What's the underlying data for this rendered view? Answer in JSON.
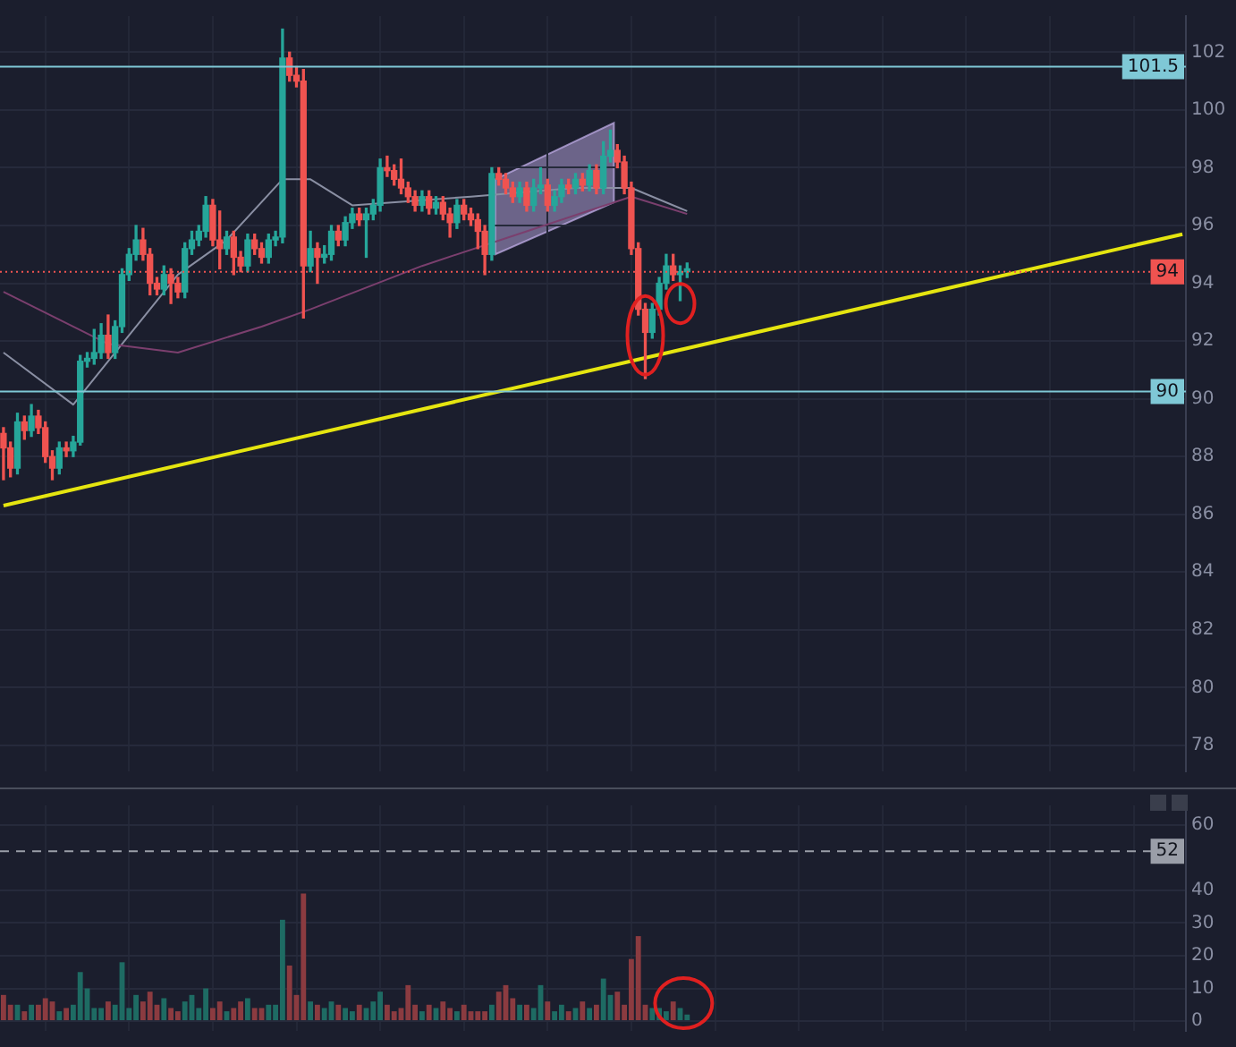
{
  "chart_data": [
    {
      "type": "candlestick",
      "tick_labels": "y",
      "grid": true,
      "legend": false,
      "categories": [
        null,
        null,
        null,
        null,
        null,
        null,
        null,
        null,
        null,
        null,
        null,
        null,
        null,
        null,
        null,
        null,
        null,
        null,
        null,
        null,
        null,
        null,
        null,
        null,
        null,
        null,
        null,
        null,
        null,
        null,
        null,
        null,
        null,
        null,
        null,
        null,
        null,
        null,
        null,
        null,
        null,
        null,
        null,
        null,
        null,
        null,
        null,
        null,
        null,
        null,
        null,
        null,
        null,
        null,
        null,
        null,
        null,
        null,
        null,
        null,
        null,
        null,
        null,
        null,
        null,
        null,
        null,
        null,
        null,
        null,
        null,
        null,
        null,
        null,
        null,
        null,
        null,
        null,
        null,
        null,
        null,
        null,
        null,
        null,
        null,
        null,
        null,
        null,
        null,
        null,
        null,
        null,
        null,
        null,
        null,
        null,
        null,
        null,
        null,
        null,
        null,
        null,
        null,
        null,
        null,
        null,
        null,
        null,
        null,
        null,
        null,
        null,
        null,
        null,
        null,
        null,
        null,
        null,
        null,
        null,
        null,
        null,
        null,
        null,
        null,
        null,
        null,
        null,
        null,
        null,
        null,
        null,
        null,
        null,
        null,
        null,
        null,
        null,
        null,
        null,
        null,
        null,
        null,
        null,
        null,
        null,
        null,
        null,
        null,
        null,
        null,
        null,
        null,
        null,
        null,
        null,
        null,
        null,
        null,
        null,
        null,
        null,
        null,
        null,
        null,
        null,
        null,
        null,
        null,
        null
      ],
      "ohlc": [
        [
          88.8,
          89.0,
          87.2,
          88.3
        ],
        [
          88.3,
          88.5,
          87.3,
          87.6
        ],
        [
          87.6,
          89.5,
          87.4,
          89.2
        ],
        [
          89.2,
          89.4,
          88.6,
          88.9
        ],
        [
          88.9,
          89.8,
          88.7,
          89.4
        ],
        [
          89.4,
          89.6,
          88.8,
          89.0
        ],
        [
          89.0,
          89.2,
          87.8,
          88.0
        ],
        [
          88.0,
          88.2,
          87.2,
          87.6
        ],
        [
          87.6,
          88.5,
          87.4,
          88.3
        ],
        [
          88.3,
          88.5,
          88.0,
          88.2
        ],
        [
          88.2,
          88.7,
          88.0,
          88.5
        ],
        [
          88.5,
          91.5,
          88.4,
          91.3
        ],
        [
          91.3,
          91.6,
          91.1,
          91.4
        ],
        [
          91.4,
          92.4,
          91.2,
          91.6
        ],
        [
          91.6,
          92.6,
          91.4,
          92.2
        ],
        [
          92.2,
          92.9,
          91.4,
          91.6
        ],
        [
          91.6,
          92.7,
          91.4,
          92.5
        ],
        [
          92.5,
          94.5,
          92.3,
          94.3
        ],
        [
          94.3,
          95.2,
          94.1,
          95.0
        ],
        [
          95.0,
          96.0,
          94.8,
          95.5
        ],
        [
          95.5,
          95.9,
          94.8,
          95.0
        ],
        [
          95.0,
          95.2,
          93.6,
          94.0
        ],
        [
          94.0,
          94.2,
          93.6,
          93.8
        ],
        [
          93.8,
          94.6,
          93.6,
          94.3
        ],
        [
          94.3,
          94.5,
          93.3,
          94.0
        ],
        [
          94.0,
          94.2,
          93.5,
          93.7
        ],
        [
          93.7,
          95.4,
          93.5,
          95.2
        ],
        [
          95.2,
          95.8,
          95.0,
          95.5
        ],
        [
          95.5,
          96.0,
          95.3,
          95.8
        ],
        [
          95.8,
          97.0,
          95.6,
          96.7
        ],
        [
          96.7,
          96.9,
          95.3,
          95.5
        ],
        [
          95.5,
          96.5,
          94.5,
          95.2
        ],
        [
          95.2,
          95.8,
          95.0,
          95.6
        ],
        [
          95.6,
          95.8,
          94.3,
          94.9
        ],
        [
          94.9,
          95.1,
          94.4,
          94.6
        ],
        [
          94.6,
          95.7,
          94.4,
          95.5
        ],
        [
          95.5,
          95.7,
          95.0,
          95.2
        ],
        [
          95.2,
          95.4,
          94.7,
          94.9
        ],
        [
          94.9,
          95.7,
          94.7,
          95.5
        ],
        [
          95.5,
          95.8,
          95.3,
          95.6
        ],
        [
          95.6,
          102.8,
          95.4,
          101.8
        ],
        [
          101.8,
          102.0,
          101.0,
          101.2
        ],
        [
          101.2,
          101.5,
          100.8,
          101.0
        ],
        [
          101.0,
          101.4,
          92.8,
          94.6
        ],
        [
          94.6,
          95.8,
          94.4,
          95.2
        ],
        [
          95.2,
          95.4,
          94.0,
          94.9
        ],
        [
          94.9,
          95.3,
          94.7,
          95.0
        ],
        [
          95.0,
          96.0,
          94.8,
          95.8
        ],
        [
          95.8,
          96.0,
          95.3,
          95.5
        ],
        [
          95.5,
          96.3,
          95.3,
          96.1
        ],
        [
          96.1,
          96.6,
          95.9,
          96.4
        ],
        [
          96.4,
          96.6,
          96.0,
          96.2
        ],
        [
          96.2,
          96.6,
          94.9,
          96.4
        ],
        [
          96.4,
          96.9,
          96.2,
          96.7
        ],
        [
          96.7,
          98.3,
          96.5,
          98.0
        ],
        [
          98.0,
          98.4,
          97.7,
          97.9
        ],
        [
          97.9,
          98.1,
          97.4,
          97.6
        ],
        [
          97.6,
          98.3,
          97.1,
          97.3
        ],
        [
          97.3,
          97.5,
          96.8,
          97.0
        ],
        [
          97.0,
          97.2,
          96.5,
          96.7
        ],
        [
          96.7,
          97.2,
          96.5,
          97.0
        ],
        [
          97.0,
          97.2,
          96.4,
          96.6
        ],
        [
          96.6,
          97.0,
          96.4,
          96.8
        ],
        [
          96.8,
          97.0,
          96.2,
          96.4
        ],
        [
          96.4,
          96.6,
          95.6,
          96.1
        ],
        [
          96.1,
          96.9,
          95.9,
          96.7
        ],
        [
          96.7,
          96.9,
          96.2,
          96.4
        ],
        [
          96.4,
          96.6,
          96.0,
          96.2
        ],
        [
          96.2,
          96.4,
          95.2,
          95.8
        ],
        [
          95.8,
          96.0,
          94.3,
          95.0
        ],
        [
          95.0,
          98.0,
          94.8,
          97.8
        ],
        [
          97.8,
          98.0,
          97.4,
          97.6
        ],
        [
          97.6,
          97.8,
          97.1,
          97.3
        ],
        [
          97.3,
          97.5,
          96.8,
          97.0
        ],
        [
          97.0,
          97.5,
          96.8,
          97.3
        ],
        [
          97.3,
          97.5,
          96.5,
          96.7
        ],
        [
          96.7,
          97.6,
          96.5,
          97.3
        ],
        [
          97.3,
          98.0,
          97.1,
          97.4
        ],
        [
          97.4,
          97.6,
          96.5,
          96.7
        ],
        [
          96.7,
          97.2,
          96.5,
          97.0
        ],
        [
          97.0,
          97.6,
          96.8,
          97.4
        ],
        [
          97.4,
          97.6,
          97.1,
          97.3
        ],
        [
          97.3,
          97.8,
          97.1,
          97.6
        ],
        [
          97.6,
          97.8,
          97.2,
          97.4
        ],
        [
          97.4,
          98.1,
          97.2,
          97.9
        ],
        [
          97.9,
          98.1,
          97.1,
          97.3
        ],
        [
          97.3,
          98.9,
          97.1,
          98.4
        ],
        [
          98.4,
          99.3,
          98.2,
          98.6
        ],
        [
          98.6,
          98.8,
          98.0,
          98.2
        ],
        [
          98.2,
          98.4,
          97.1,
          97.3
        ],
        [
          97.3,
          97.5,
          95.0,
          95.2
        ],
        [
          95.2,
          95.4,
          92.9,
          93.1
        ],
        [
          93.1,
          93.3,
          90.7,
          92.3
        ],
        [
          92.3,
          93.3,
          92.1,
          93.1
        ],
        [
          93.1,
          94.2,
          92.9,
          94.0
        ],
        [
          94.0,
          95.0,
          93.8,
          94.6
        ],
        [
          94.6,
          95.0,
          94.1,
          94.3
        ],
        [
          94.3,
          94.6,
          93.4,
          94.4
        ],
        [
          94.4,
          94.7,
          94.2,
          94.5
        ],
        null,
        null,
        null,
        null,
        null,
        null,
        null,
        null,
        null,
        null,
        null,
        null,
        null,
        null,
        null,
        null,
        null,
        null,
        null,
        null,
        null,
        null,
        null,
        null,
        null,
        null,
        null,
        null,
        null,
        null,
        null,
        null,
        null,
        null,
        null,
        null,
        null,
        null,
        null,
        null,
        null,
        null,
        null,
        null,
        null,
        null,
        null,
        null,
        null,
        null,
        null,
        null,
        null,
        null,
        null,
        null,
        null,
        null,
        null,
        null,
        null,
        null,
        null,
        null,
        null,
        null,
        null,
        null,
        null,
        null,
        null
      ],
      "colors": [
        "#ef5350",
        "#ef5350",
        "#26a69a",
        "#ef5350",
        "#26a69a",
        "#ef5350",
        "#ef5350",
        "#ef5350",
        "#26a69a",
        "#ef5350",
        "#26a69a",
        "#26a69a",
        "#26a69a",
        "#26a69a",
        "#26a69a",
        "#ef5350",
        "#26a69a",
        "#26a69a",
        "#26a69a",
        "#26a69a",
        "#ef5350",
        "#ef5350",
        "#ef5350",
        "#26a69a",
        "#ef5350",
        "#ef5350",
        "#26a69a",
        "#26a69a",
        "#26a69a",
        "#26a69a",
        "#ef5350",
        "#ef5350",
        "#26a69a",
        "#ef5350",
        "#ef5350",
        "#26a69a",
        "#ef5350",
        "#ef5350",
        "#26a69a",
        "#26a69a",
        "#26a69a",
        "#ef5350",
        "#ef5350",
        "#ef5350",
        "#26a69a",
        "#ef5350",
        "#26a69a",
        "#26a69a",
        "#ef5350",
        "#26a69a",
        "#26a69a",
        "#ef5350",
        "#26a69a",
        "#26a69a",
        "#26a69a",
        "#ef5350",
        "#ef5350",
        "#ef5350",
        "#ef5350",
        "#ef5350",
        "#26a69a",
        "#ef5350",
        "#26a69a",
        "#ef5350",
        "#ef5350",
        "#26a69a",
        "#ef5350",
        "#ef5350",
        "#ef5350",
        "#ef5350",
        "#26a69a",
        "#ef5350",
        "#ef5350",
        "#ef5350",
        "#26a69a",
        "#ef5350",
        "#26a69a",
        "#26a69a",
        "#ef5350",
        "#26a69a",
        "#26a69a",
        "#ef5350",
        "#26a69a",
        "#ef5350",
        "#26a69a",
        "#ef5350",
        "#26a69a",
        "#26a69a",
        "#ef5350",
        "#ef5350",
        "#ef5350",
        "#ef5350",
        "#ef5350",
        "#26a69a",
        "#26a69a",
        "#26a69a",
        "#ef5350",
        "#26a69a",
        "#26a69a",
        null,
        null,
        null,
        null,
        null,
        null,
        null,
        null,
        null,
        null,
        null,
        null,
        null,
        null,
        null,
        null,
        null,
        null,
        null,
        null,
        null,
        null,
        null,
        null,
        null,
        null,
        null,
        null,
        null,
        null,
        null,
        null,
        null,
        null,
        null,
        null,
        null,
        null,
        null,
        null,
        null,
        null,
        null,
        null,
        null,
        null,
        null,
        null,
        null,
        null,
        null,
        null,
        null,
        null,
        null,
        null,
        null,
        null,
        null,
        null,
        null,
        null,
        null,
        null,
        null,
        null,
        null,
        null,
        null,
        null,
        null
      ],
      "series": [
        {
          "type": "line",
          "color": "#7b3f6e",
          "values": [
            93.7,
            null,
            null,
            null,
            null,
            null,
            null,
            null,
            null,
            null,
            null,
            null,
            null,
            null,
            null,
            91.9,
            null,
            null,
            null,
            null,
            null,
            null,
            null,
            null,
            null,
            91.6,
            null,
            null,
            null,
            null,
            null,
            null,
            null,
            null,
            null,
            null,
            null,
            92.5,
            null,
            null,
            null,
            null,
            null,
            null,
            93.1,
            null,
            null,
            null,
            null,
            null,
            null,
            null,
            null,
            null,
            null,
            null,
            null,
            null,
            null,
            null,
            94.6,
            null,
            null,
            null,
            null,
            null,
            null,
            null,
            null,
            null,
            null,
            null,
            null,
            null,
            null,
            95.8,
            null,
            null,
            null,
            null,
            null,
            null,
            null,
            null,
            null,
            null,
            null,
            null,
            null,
            null,
            97.0,
            null,
            null,
            null,
            null,
            null,
            null,
            null,
            96.4,
            null,
            null,
            null,
            null,
            null,
            null,
            null,
            null,
            null,
            null,
            null,
            null,
            null,
            null,
            null,
            null,
            null,
            null,
            null,
            null,
            null,
            null,
            null,
            null,
            null,
            null,
            null,
            null,
            null,
            null,
            null,
            null,
            null,
            null,
            null,
            null,
            null,
            null,
            null,
            null,
            null,
            null,
            null,
            null,
            null,
            null,
            null,
            null,
            null,
            null,
            null,
            null,
            null,
            null,
            null,
            null,
            null,
            null,
            null,
            null,
            null,
            null,
            null,
            null,
            null,
            null,
            null,
            null,
            null,
            null,
            null
          ]
        },
        {
          "type": "line",
          "color": "#8a8fa3",
          "values": [
            91.6,
            null,
            null,
            null,
            null,
            null,
            null,
            null,
            null,
            null,
            89.8,
            null,
            null,
            null,
            null,
            null,
            null,
            null,
            null,
            null,
            null,
            null,
            null,
            null,
            null,
            94.3,
            null,
            null,
            null,
            null,
            null,
            null,
            95.5,
            null,
            null,
            null,
            null,
            null,
            null,
            null,
            97.6,
            null,
            null,
            null,
            97.6,
            null,
            null,
            null,
            null,
            null,
            96.7,
            null,
            null,
            null,
            null,
            null,
            null,
            null,
            null,
            null,
            null,
            null,
            null,
            null,
            null,
            null,
            null,
            97.0,
            null,
            null,
            null,
            null,
            null,
            null,
            null,
            null,
            null,
            null,
            null,
            null,
            null,
            null,
            97.3,
            null,
            null,
            null,
            null,
            null,
            null,
            null,
            97.3,
            null,
            null,
            null,
            null,
            null,
            null,
            null,
            96.5,
            null,
            null,
            null,
            null,
            null,
            null,
            null,
            null,
            null,
            null,
            null,
            null,
            null,
            null,
            null,
            null,
            null,
            null,
            null,
            null,
            null,
            null,
            null,
            null,
            null,
            null,
            null,
            null,
            null,
            null,
            null,
            null,
            null,
            null,
            null,
            null,
            null,
            null,
            null,
            null,
            null,
            null,
            null,
            null,
            null,
            null,
            null,
            null,
            null,
            null,
            null,
            null,
            null,
            null,
            null,
            null,
            null,
            null,
            null,
            null,
            null,
            null,
            null,
            null,
            null,
            null,
            null,
            null,
            null,
            null,
            null
          ]
        },
        {
          "type": "line",
          "color": "#e5e510",
          "values": [
            86.3,
            null,
            null,
            null,
            null,
            null,
            null,
            null,
            null,
            null,
            null,
            null,
            null,
            null,
            null,
            null,
            null,
            null,
            null,
            null,
            null,
            null,
            null,
            null,
            null,
            null,
            null,
            null,
            null,
            null,
            null,
            null,
            null,
            null,
            null,
            null,
            null,
            null,
            null,
            null,
            null,
            null,
            null,
            null,
            null,
            null,
            null,
            null,
            null,
            null,
            null,
            null,
            null,
            null,
            null,
            null,
            null,
            null,
            null,
            null,
            null,
            null,
            null,
            null,
            null,
            null,
            null,
            null,
            null,
            null,
            null,
            null,
            null,
            null,
            null,
            null,
            null,
            null,
            null,
            null,
            null,
            null,
            null,
            null,
            null,
            null,
            null,
            null,
            null,
            null,
            null,
            null,
            null,
            null,
            null,
            null,
            null,
            null,
            null,
            null,
            null,
            null,
            null,
            null,
            null,
            null,
            null,
            null,
            null,
            null,
            null,
            null,
            null,
            null,
            null,
            null,
            null,
            null,
            null,
            null,
            null,
            null,
            null,
            null,
            null,
            null,
            null,
            null,
            null,
            null,
            null,
            null,
            null,
            null,
            null,
            null,
            null,
            null,
            null,
            null,
            null,
            null,
            null,
            null,
            null,
            null,
            null,
            null,
            null,
            null,
            null,
            null,
            null,
            null,
            null,
            null,
            null,
            null,
            null,
            null,
            null,
            null,
            null,
            null,
            null,
            null,
            null,
            null,
            null,
            95.7
          ]
        }
      ],
      "ylim": [
        77.1,
        103.25
      ],
      "yticks": [
        78,
        80,
        82,
        84,
        86,
        88,
        90,
        92,
        94,
        96,
        98,
        100,
        102
      ],
      "ref_lines": [
        {
          "axis": "y",
          "value": 101.5,
          "label": "101.5",
          "color": "#7fc8d6",
          "line_style": "solid"
        },
        {
          "axis": "y",
          "value": 90.25,
          "label": "90",
          "color": "#7fc8d6",
          "line_style": "solid"
        },
        {
          "axis": "y",
          "value": 94.4,
          "label": "94",
          "color": "#ef5350",
          "line_style": "dotted"
        }
      ]
    },
    {
      "type": "bar",
      "tick_labels": "y",
      "grid": true,
      "legend": false,
      "categories": [
        null,
        null,
        null,
        null,
        null,
        null,
        null,
        null,
        null,
        null,
        null,
        null,
        null,
        null,
        null,
        null,
        null,
        null,
        null,
        null,
        null,
        null,
        null,
        null,
        null,
        null,
        null,
        null,
        null,
        null,
        null,
        null,
        null,
        null,
        null,
        null,
        null,
        null,
        null,
        null,
        null,
        null,
        null,
        null,
        null,
        null,
        null,
        null,
        null,
        null,
        null,
        null,
        null,
        null,
        null,
        null,
        null,
        null,
        null,
        null,
        null,
        null,
        null,
        null,
        null,
        null,
        null,
        null,
        null,
        null,
        null,
        null,
        null,
        null,
        null,
        null,
        null,
        null,
        null,
        null,
        null,
        null,
        null,
        null,
        null,
        null,
        null,
        null,
        null,
        null,
        null,
        null,
        null,
        null,
        null,
        null,
        null,
        null,
        null,
        null,
        null,
        null,
        null,
        null,
        null,
        null,
        null,
        null,
        null,
        null,
        null,
        null,
        null,
        null,
        null,
        null,
        null,
        null,
        null,
        null,
        null,
        null,
        null,
        null,
        null,
        null,
        null,
        null,
        null,
        null,
        null,
        null,
        null,
        null,
        null,
        null,
        null,
        null,
        null,
        null,
        null,
        null,
        null,
        null,
        null,
        null,
        null,
        null,
        null,
        null,
        null,
        null,
        null,
        null,
        null,
        null,
        null,
        null,
        null,
        null,
        null,
        null,
        null,
        null,
        null,
        null,
        null,
        null,
        null,
        null
      ],
      "values": [
        8,
        5,
        5,
        3,
        5,
        5,
        7,
        6,
        3,
        4,
        5,
        15,
        10,
        4,
        4,
        6,
        5,
        18,
        4,
        8,
        6,
        9,
        5,
        7,
        4,
        3,
        6,
        8,
        4,
        10,
        4,
        6,
        3,
        4,
        6,
        7,
        4,
        4,
        5,
        5,
        31,
        17,
        8,
        39,
        6,
        5,
        4,
        6,
        5,
        4,
        3,
        5,
        4,
        6,
        9,
        5,
        3,
        4,
        11,
        5,
        3,
        5,
        4,
        6,
        4,
        3,
        5,
        3,
        3,
        3,
        5,
        9,
        11,
        7,
        5,
        5,
        4,
        11,
        6,
        3,
        5,
        3,
        4,
        6,
        4,
        5,
        13,
        8,
        9,
        5,
        19,
        26,
        5,
        4,
        4,
        3,
        6,
        4,
        2,
        null,
        null,
        null,
        null,
        null,
        null,
        null,
        null,
        null,
        null,
        null,
        null,
        null,
        null,
        null,
        null,
        null,
        null,
        null,
        null,
        null,
        null,
        null,
        null,
        null,
        null,
        null,
        null,
        null,
        null,
        null,
        null,
        null,
        null,
        null,
        null,
        null,
        null,
        null,
        null,
        null,
        null,
        null,
        null,
        null,
        null,
        null,
        null,
        null,
        null,
        null,
        null,
        null,
        null,
        null,
        null,
        null,
        null,
        null,
        null,
        null,
        null,
        null,
        null,
        null,
        null,
        null,
        null,
        null,
        null,
        null
      ],
      "colors": [
        "#8b3b40",
        "#8b3b40",
        "#1e6b63",
        "#8b3b40",
        "#1e6b63",
        "#8b3b40",
        "#8b3b40",
        "#8b3b40",
        "#1e6b63",
        "#8b3b40",
        "#1e6b63",
        "#1e6b63",
        "#1e6b63",
        "#1e6b63",
        "#1e6b63",
        "#8b3b40",
        "#1e6b63",
        "#1e6b63",
        "#1e6b63",
        "#1e6b63",
        "#8b3b40",
        "#8b3b40",
        "#8b3b40",
        "#1e6b63",
        "#8b3b40",
        "#8b3b40",
        "#1e6b63",
        "#1e6b63",
        "#1e6b63",
        "#1e6b63",
        "#8b3b40",
        "#8b3b40",
        "#1e6b63",
        "#8b3b40",
        "#8b3b40",
        "#1e6b63",
        "#8b3b40",
        "#8b3b40",
        "#1e6b63",
        "#1e6b63",
        "#1e6b63",
        "#8b3b40",
        "#8b3b40",
        "#8b3b40",
        "#1e6b63",
        "#8b3b40",
        "#1e6b63",
        "#1e6b63",
        "#8b3b40",
        "#1e6b63",
        "#1e6b63",
        "#8b3b40",
        "#1e6b63",
        "#1e6b63",
        "#1e6b63",
        "#8b3b40",
        "#8b3b40",
        "#8b3b40",
        "#8b3b40",
        "#8b3b40",
        "#1e6b63",
        "#8b3b40",
        "#1e6b63",
        "#8b3b40",
        "#8b3b40",
        "#1e6b63",
        "#8b3b40",
        "#8b3b40",
        "#8b3b40",
        "#8b3b40",
        "#1e6b63",
        "#8b3b40",
        "#8b3b40",
        "#8b3b40",
        "#1e6b63",
        "#8b3b40",
        "#1e6b63",
        "#1e6b63",
        "#8b3b40",
        "#1e6b63",
        "#1e6b63",
        "#8b3b40",
        "#1e6b63",
        "#8b3b40",
        "#1e6b63",
        "#8b3b40",
        "#1e6b63",
        "#1e6b63",
        "#8b3b40",
        "#8b3b40",
        "#8b3b40",
        "#8b3b40",
        "#8b3b40",
        "#1e6b63",
        "#1e6b63",
        "#1e6b63",
        "#8b3b40",
        "#1e6b63",
        "#1e6b63",
        null,
        null,
        null,
        null,
        null,
        null,
        null,
        null,
        null,
        null,
        null,
        null,
        null,
        null,
        null,
        null,
        null,
        null,
        null,
        null,
        null,
        null,
        null,
        null,
        null,
        null,
        null,
        null,
        null,
        null,
        null,
        null,
        null,
        null,
        null,
        null,
        null,
        null,
        null,
        null,
        null,
        null,
        null,
        null,
        null,
        null,
        null,
        null,
        null,
        null,
        null,
        null,
        null,
        null,
        null,
        null,
        null,
        null,
        null,
        null,
        null,
        null,
        null,
        null,
        null,
        null,
        null,
        null,
        null,
        null,
        null
      ],
      "ylim": [
        -3,
        66
      ],
      "yticks": [
        0,
        10,
        20,
        30,
        40,
        60
      ],
      "ref_lines": [
        {
          "axis": "y",
          "value": 52,
          "label": "52",
          "color": "#9a9ea8",
          "line_style": "dashed"
        }
      ]
    }
  ]
}
